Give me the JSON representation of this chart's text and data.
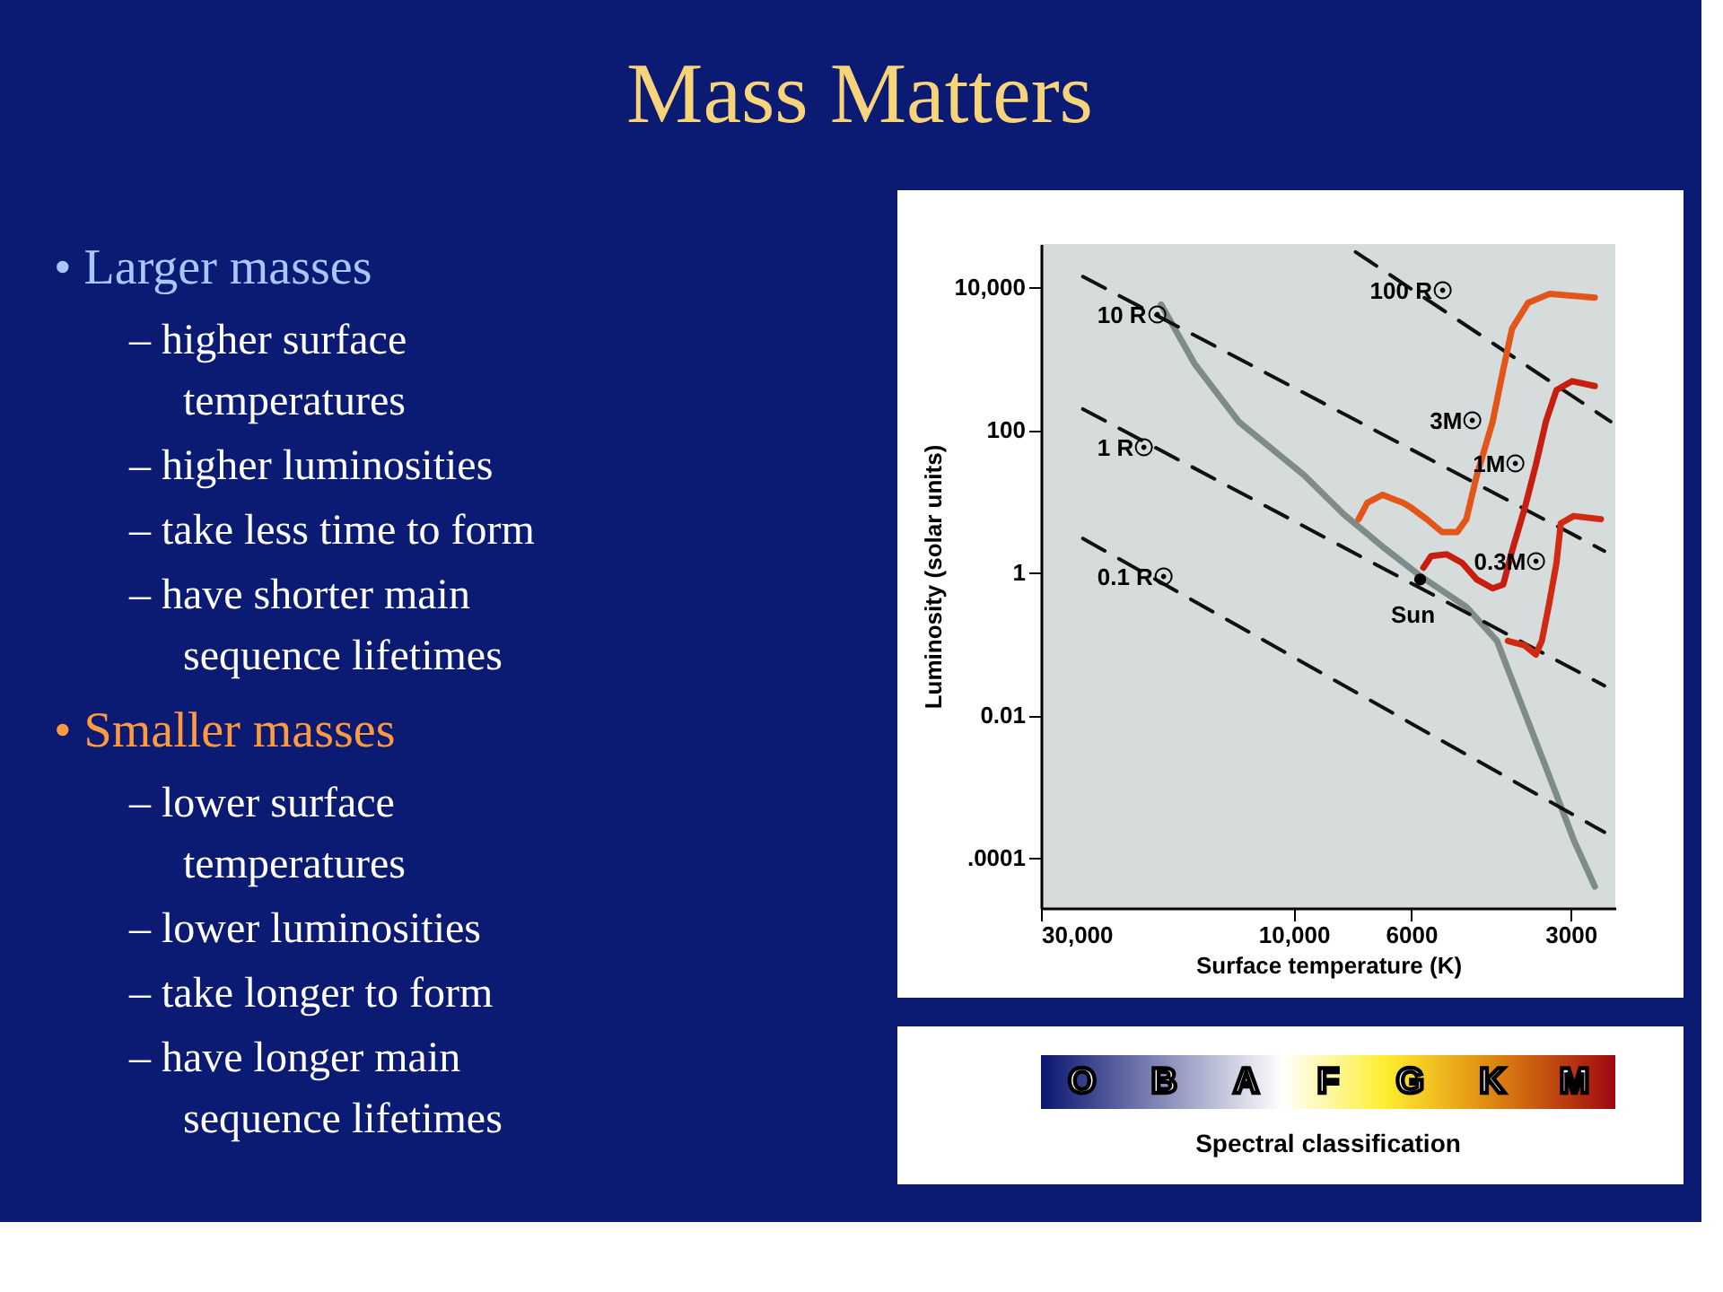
{
  "chart_data": {
    "type": "line",
    "title": "Mass Matters",
    "xlabel": "Surface temperature (K)",
    "ylabel": "Luminosity (solar units)",
    "log": "xy",
    "grid": false,
    "xlim": [
      30000,
      2470
    ],
    "ylim": [
      2e-05,
      40000
    ],
    "xticks": [
      {
        "value": 30000,
        "label": "30,000"
      },
      {
        "value": 10000,
        "label": "10,000"
      },
      6000,
      3000
    ],
    "yticks": [
      {
        "value": 0.0001,
        "label": ".0001"
      },
      0.01,
      1,
      100,
      {
        "value": 10000,
        "label": "10,000"
      }
    ],
    "series": [
      {
        "color": "#7d8c88",
        "x": [
          17800,
          15400,
          12700,
          9550,
          8050,
          6790,
          5770,
          4720,
          4130,
          3760,
          3290,
          2960,
          2700
        ],
        "values": [
          5700,
          850,
          130,
          23,
          6.6,
          2.3,
          0.9,
          0.33,
          0.11,
          0.018,
          0.0014,
          0.00018,
          4e-05
        ]
      },
      {
        "name": "100 R☉",
        "color": "#111111",
        "line_style": "dashed",
        "x": [
          7640,
          2520
        ],
        "values": [
          31000,
          130
        ]
      },
      {
        "name": "10 R☉",
        "color": "#111111",
        "line_style": "dashed",
        "x": [
          25000,
          2590
        ],
        "values": [
          14000,
          2.0
        ]
      },
      {
        "name": "1 R☉",
        "color": "#111111",
        "line_style": "dashed",
        "x": [
          25000,
          2590
        ],
        "values": [
          195,
          0.026
        ]
      },
      {
        "name": "0.1 R☉",
        "color": "#111111",
        "line_style": "dashed",
        "x": [
          25000,
          2590
        ],
        "values": [
          3.0,
          0.00023
        ]
      },
      {
        "name": "3M☉",
        "color": "#e2561a",
        "x": [
          2700,
          3290,
          3610,
          3870,
          4020,
          4210,
          4510,
          4720,
          4910,
          5250,
          5610,
          6000,
          6220,
          6440,
          6790,
          7260,
          7540
        ],
        "values": [
          7100,
          8000,
          6000,
          2600,
          700,
          130,
          23,
          5.6,
          3.7,
          3.7,
          5.6,
          8.1,
          9.5,
          10.5,
          12.3,
          9.5,
          5.6
        ]
      },
      {
        "name": "1M☉",
        "color": "#c81e10",
        "x": [
          2700,
          2980,
          3190,
          3340,
          3490,
          3660,
          3870,
          4020,
          4210,
          4510,
          4810,
          5140,
          5500,
          5690
        ],
        "values": [
          410,
          480,
          360,
          130,
          32,
          8.1,
          2.0,
          0.68,
          0.6,
          0.8,
          1.37,
          1.8,
          1.7,
          1.17
        ]
      },
      {
        "name": "0.3M☉",
        "color": "#d02a10",
        "x": [
          2630,
          2960,
          3130,
          3190,
          3290,
          3400,
          3490,
          3660,
          3940
        ],
        "values": [
          5.6,
          6.2,
          4.9,
          1.37,
          0.38,
          0.11,
          0.071,
          0.095,
          0.11
        ]
      },
      {
        "type": "scatter",
        "color": "#000000",
        "x": [
          5770
        ],
        "values": [
          0.8
        ]
      }
    ],
    "annotations": [
      "• Larger masses",
      "– higher surface temperatures",
      "– higher luminosities",
      "– take less time to form",
      "– have shorter main sequence lifetimes",
      "• Smaller masses",
      "– lower surface temperatures",
      "– lower luminosities",
      "– take longer to form",
      "– have longer main sequence lifetimes",
      "O",
      "B",
      "A",
      "F",
      "G",
      "K",
      "M",
      "Spectral classification",
      {
        "text": "Sun",
        "x": 5770,
        "y": 0.8
      }
    ]
  }
}
